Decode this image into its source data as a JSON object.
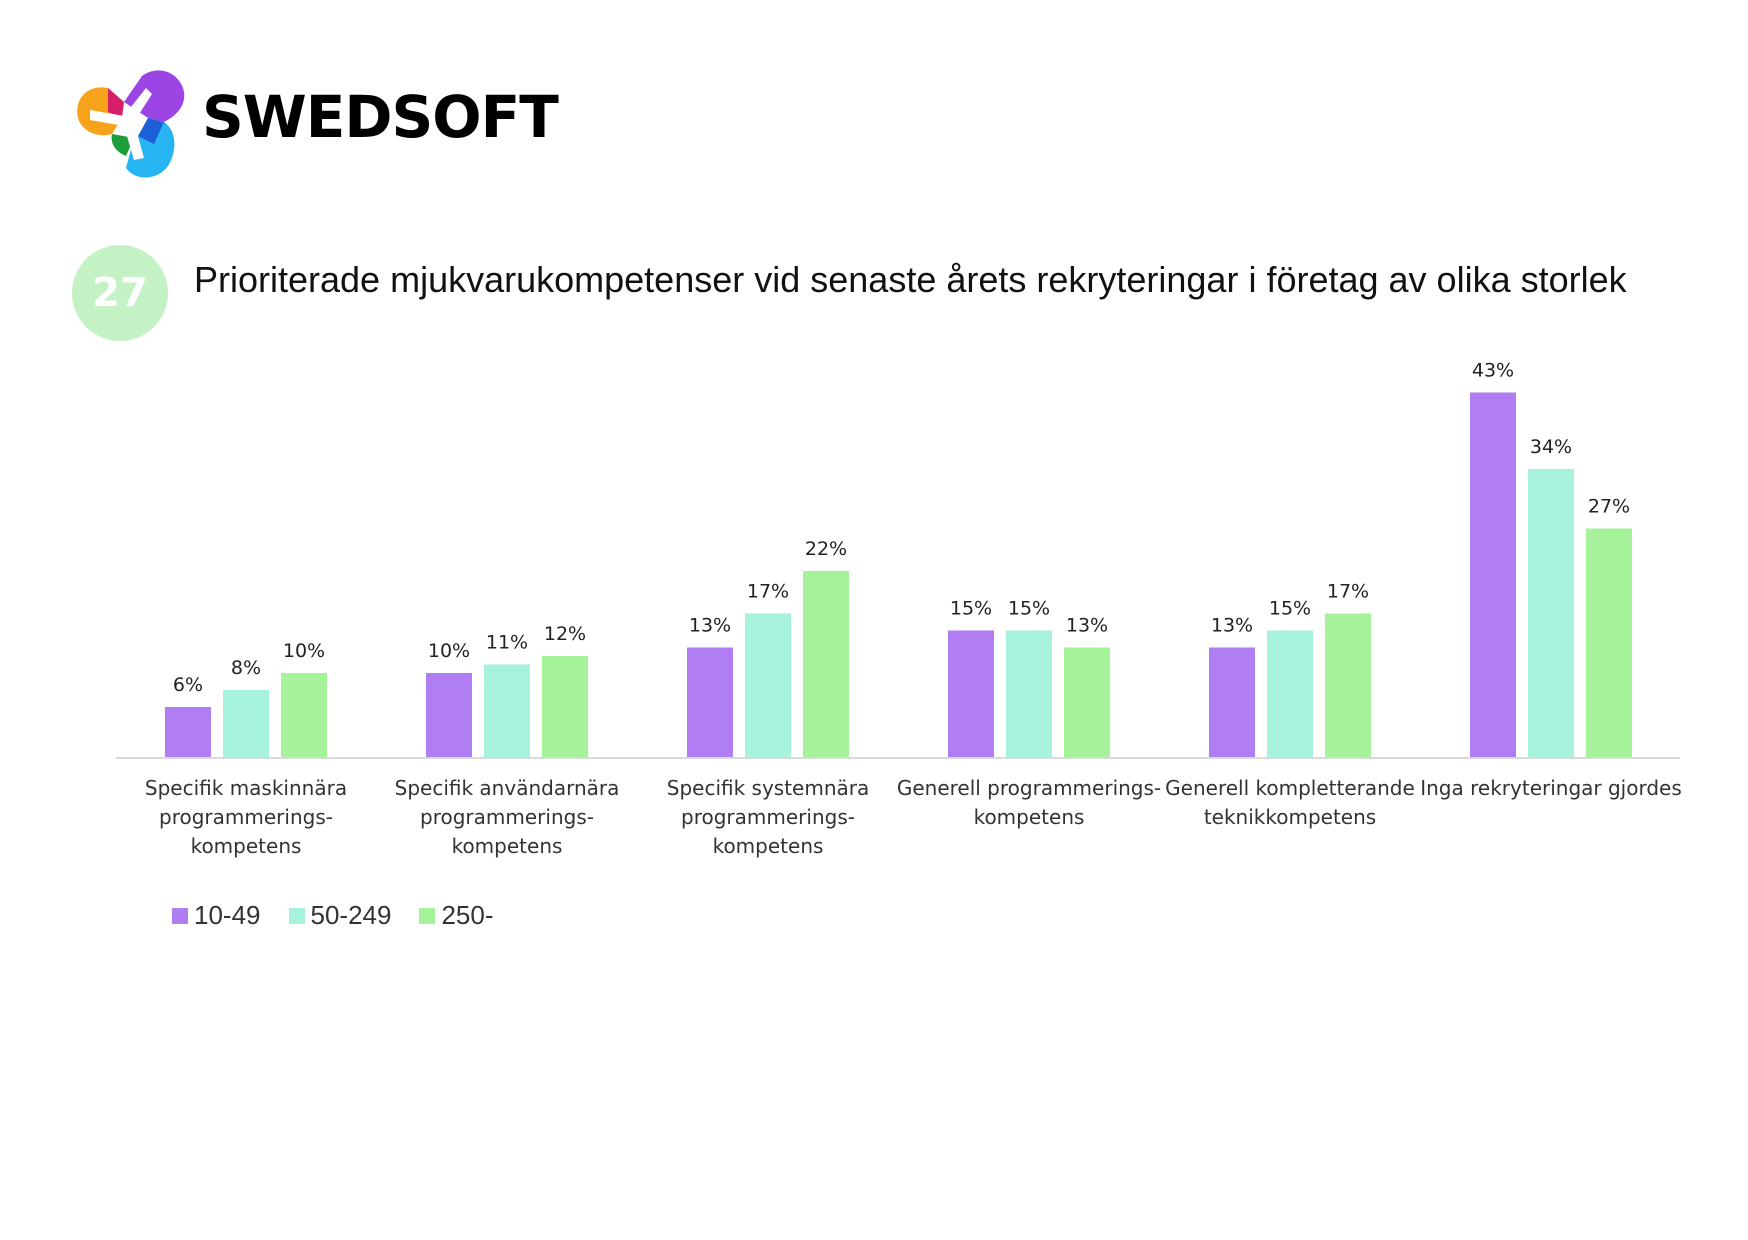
{
  "brand": {
    "name": "SWEDSOFT",
    "colors": [
      "#f7a21b",
      "#9b45e4",
      "#d61f69",
      "#1f9c3a",
      "#1d5fd6",
      "#27b4f2"
    ]
  },
  "figure": {
    "number": "27",
    "title": "Prioriterade mjukvarukompetenser vid senaste årets rekryteringar i företag av olika storlek"
  },
  "chart_data": {
    "type": "bar",
    "categories": [
      [
        "Specifik maskinnära",
        "programmerings-",
        "kompetens"
      ],
      [
        "Specifik användarnära",
        "programmerings-",
        "kompetens"
      ],
      [
        "Specifik systemnära",
        "programmerings-",
        "kompetens"
      ],
      [
        "Generell programmerings-",
        "kompetens"
      ],
      [
        "Generell kompletterande",
        "teknikkompetens"
      ],
      [
        "Inga rekryteringar gjordes"
      ]
    ],
    "series": [
      {
        "name": "10-49",
        "color": "#b07ef2",
        "values": [
          6,
          10,
          13,
          15,
          13,
          43
        ]
      },
      {
        "name": "50-249",
        "color": "#a6f2dd",
        "values": [
          8,
          11,
          17,
          15,
          15,
          34
        ]
      },
      {
        "name": "250-",
        "color": "#a6f29b",
        "values": [
          10,
          12,
          22,
          13,
          17,
          27
        ]
      }
    ],
    "value_suffix": "%",
    "ylim": [
      0,
      45
    ],
    "grid": false,
    "legend_position": "bottom-left",
    "xlabel": "",
    "ylabel": ""
  }
}
